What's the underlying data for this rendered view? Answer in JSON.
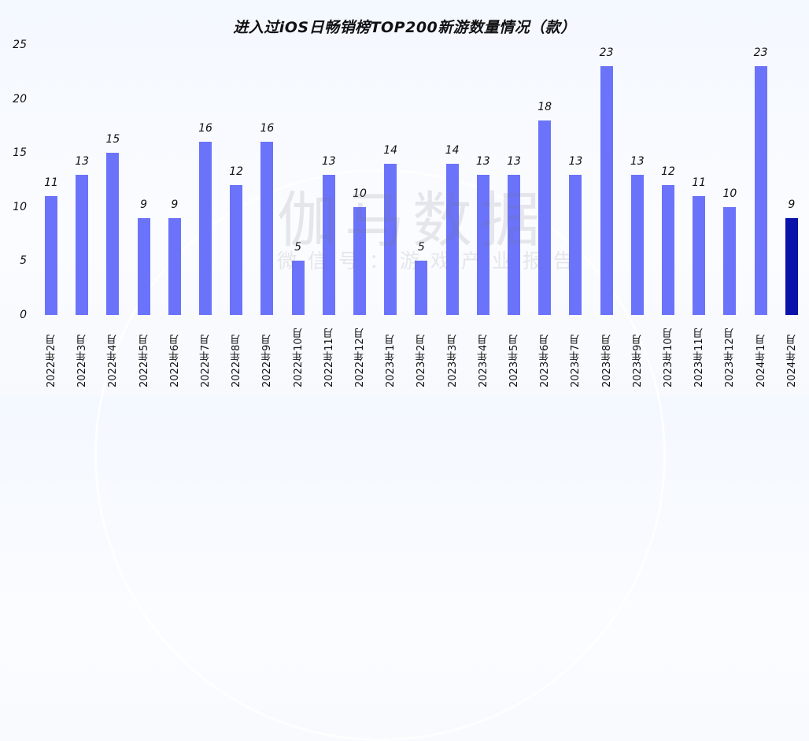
{
  "chart_data": {
    "type": "bar",
    "title": "进入过iOS日畅销榜TOP200新游数量情况（款）",
    "xlabel": "",
    "ylabel": "",
    "ylim": [
      0,
      25
    ],
    "yticks": [
      0,
      5,
      10,
      15,
      20,
      25
    ],
    "grid": false,
    "legend": null,
    "categories": [
      "2022年2月",
      "2022年3月",
      "2022年4月",
      "2022年5月",
      "2022年6月",
      "2022年7月",
      "2022年8月",
      "2022年9月",
      "2022年10月",
      "2022年11月",
      "2022年12月",
      "2023年1月",
      "2023年2月",
      "2023年3月",
      "2023年4月",
      "2023年5月",
      "2023年6月",
      "2023年7月",
      "2023年8月",
      "2023年9月",
      "2023年10月",
      "2023年11月",
      "2023年12月",
      "2024年1月",
      "2024年2月"
    ],
    "values": [
      11,
      13,
      15,
      9,
      9,
      16,
      12,
      16,
      5,
      13,
      10,
      14,
      5,
      14,
      13,
      13,
      18,
      13,
      23,
      13,
      12,
      11,
      10,
      23,
      9
    ],
    "colors": {
      "default_bar": "#6b73fa",
      "highlight_bar": "#0a12aa",
      "highlight_index": 24
    },
    "data_labels": true
  },
  "watermark": {
    "main": "伽马数据",
    "sub": "微信号：游戏产业报告"
  }
}
